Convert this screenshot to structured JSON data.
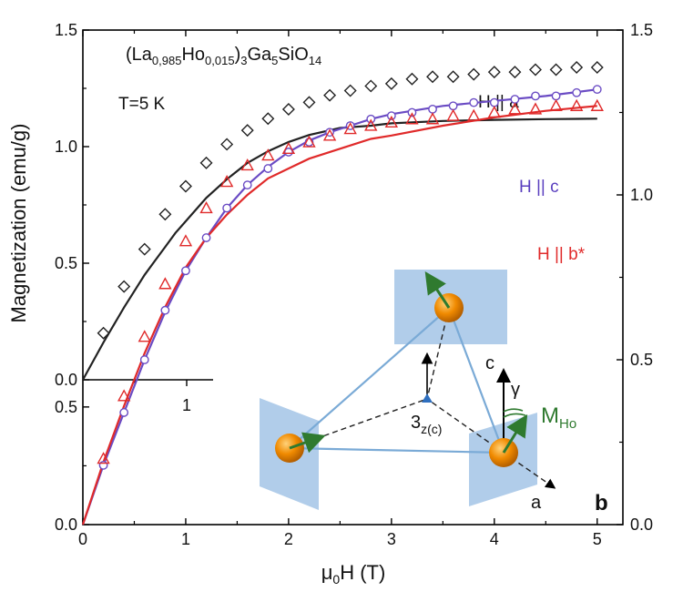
{
  "chart_data": {
    "type": "scatter",
    "compound": {
      "base": "(La",
      "sub1": "0,985",
      "ho": "Ho",
      "sub2": "0,015",
      "mid": ")",
      "sub3": "3",
      "ga": "Ga",
      "sub4": "5",
      "si": "SiO",
      "sub5": "14"
    },
    "temperature_label": "T=5 K",
    "ylabel": "Magnetization (emu/g)",
    "xlabel": {
      "mu": "μ",
      "sub": "0",
      "rest": "H (T)"
    },
    "panel_label": "b",
    "xlim": [
      0,
      5.25
    ],
    "ylim_main": [
      0,
      1.5
    ],
    "ylim_right": [
      0,
      1.5
    ],
    "x_ticks": [
      "0",
      "1",
      "2",
      "3",
      "4",
      "5"
    ],
    "y_ticks_main": [
      "0.0",
      "0.5",
      "1.0",
      "1.5"
    ],
    "y_ticks_right": [
      "0.0",
      "0.5",
      "1.0",
      "1.5"
    ],
    "y_ticks_inset": [
      "0.0",
      "0.5"
    ],
    "inset_x_ticks": [
      "1"
    ],
    "series": [
      {
        "name": "H || a",
        "axis": "main",
        "color": "#222222",
        "marker": "diamond",
        "points": [
          [
            0.2,
            0.2
          ],
          [
            0.4,
            0.4
          ],
          [
            0.6,
            0.56
          ],
          [
            0.8,
            0.71
          ],
          [
            1.0,
            0.83
          ],
          [
            1.2,
            0.93
          ],
          [
            1.4,
            1.01
          ],
          [
            1.6,
            1.07
          ],
          [
            1.8,
            1.12
          ],
          [
            2.0,
            1.16
          ],
          [
            2.2,
            1.19
          ],
          [
            2.4,
            1.22
          ],
          [
            2.6,
            1.24
          ],
          [
            2.8,
            1.26
          ],
          [
            3.0,
            1.27
          ],
          [
            3.2,
            1.29
          ],
          [
            3.4,
            1.3
          ],
          [
            3.6,
            1.3
          ],
          [
            3.8,
            1.31
          ],
          [
            4.0,
            1.32
          ],
          [
            4.2,
            1.32
          ],
          [
            4.4,
            1.33
          ],
          [
            4.6,
            1.33
          ],
          [
            4.8,
            1.34
          ],
          [
            5.0,
            1.34
          ]
        ],
        "fit": [
          [
            0,
            0
          ],
          [
            0.1,
            0.08
          ],
          [
            0.2,
            0.16
          ],
          [
            0.3,
            0.235
          ],
          [
            0.4,
            0.31
          ],
          [
            0.5,
            0.38
          ],
          [
            0.6,
            0.45
          ],
          [
            0.7,
            0.51
          ],
          [
            0.8,
            0.57
          ],
          [
            0.9,
            0.63
          ],
          [
            1.0,
            0.68
          ],
          [
            1.2,
            0.78
          ],
          [
            1.4,
            0.86
          ],
          [
            1.6,
            0.93
          ],
          [
            1.8,
            0.98
          ],
          [
            2.0,
            1.02
          ],
          [
            2.2,
            1.05
          ],
          [
            2.5,
            1.08
          ],
          [
            2.8,
            1.09
          ],
          [
            3.0,
            1.1
          ],
          [
            3.5,
            1.11
          ],
          [
            4.0,
            1.115
          ],
          [
            4.5,
            1.118
          ],
          [
            5.0,
            1.12
          ]
        ]
      },
      {
        "name": "H || c",
        "axis": "right",
        "color": "#6a4bc4",
        "marker": "circle",
        "points": [
          [
            0.2,
            0.18
          ],
          [
            0.4,
            0.34
          ],
          [
            0.6,
            0.5
          ],
          [
            0.8,
            0.65
          ],
          [
            1.0,
            0.77
          ],
          [
            1.2,
            0.87
          ],
          [
            1.4,
            0.96
          ],
          [
            1.6,
            1.03
          ],
          [
            1.8,
            1.08
          ],
          [
            2.0,
            1.13
          ],
          [
            2.2,
            1.16
          ],
          [
            2.4,
            1.19
          ],
          [
            2.6,
            1.21
          ],
          [
            2.8,
            1.23
          ],
          [
            3.0,
            1.24
          ],
          [
            3.2,
            1.25
          ],
          [
            3.4,
            1.26
          ],
          [
            3.6,
            1.27
          ],
          [
            3.8,
            1.28
          ],
          [
            4.0,
            1.28
          ],
          [
            4.2,
            1.29
          ],
          [
            4.4,
            1.3
          ],
          [
            4.6,
            1.3
          ],
          [
            4.8,
            1.31
          ],
          [
            5.0,
            1.32
          ]
        ],
        "fit": [
          [
            0,
            0
          ],
          [
            0.2,
            0.18
          ],
          [
            0.4,
            0.34
          ],
          [
            0.6,
            0.5
          ],
          [
            0.8,
            0.645
          ],
          [
            1.0,
            0.77
          ],
          [
            1.2,
            0.87
          ],
          [
            1.4,
            0.96
          ],
          [
            1.6,
            1.03
          ],
          [
            1.8,
            1.085
          ],
          [
            2.0,
            1.13
          ],
          [
            2.2,
            1.165
          ],
          [
            2.4,
            1.19
          ],
          [
            2.6,
            1.21
          ],
          [
            2.8,
            1.23
          ],
          [
            3.0,
            1.245
          ],
          [
            3.5,
            1.27
          ],
          [
            4.0,
            1.285
          ],
          [
            4.5,
            1.3
          ],
          [
            5.0,
            1.32
          ]
        ]
      },
      {
        "name": "H || b*",
        "axis": "right",
        "color": "#e02a2a",
        "marker": "triangle",
        "points": [
          [
            0.2,
            0.2
          ],
          [
            0.4,
            0.39
          ],
          [
            0.6,
            0.57
          ],
          [
            0.8,
            0.73
          ],
          [
            1.0,
            0.86
          ],
          [
            1.2,
            0.96
          ],
          [
            1.4,
            1.04
          ],
          [
            1.6,
            1.09
          ],
          [
            1.8,
            1.12
          ],
          [
            2.0,
            1.14
          ],
          [
            2.2,
            1.16
          ],
          [
            2.4,
            1.18
          ],
          [
            2.6,
            1.2
          ],
          [
            2.8,
            1.21
          ],
          [
            3.0,
            1.22
          ],
          [
            3.2,
            1.23
          ],
          [
            3.4,
            1.23
          ],
          [
            3.6,
            1.24
          ],
          [
            3.8,
            1.24
          ],
          [
            4.0,
            1.25
          ],
          [
            4.2,
            1.26
          ],
          [
            4.4,
            1.26
          ],
          [
            4.6,
            1.27
          ],
          [
            4.8,
            1.27
          ],
          [
            5.0,
            1.27
          ]
        ],
        "fit": [
          [
            0,
            0
          ],
          [
            0.2,
            0.19
          ],
          [
            0.4,
            0.36
          ],
          [
            0.6,
            0.52
          ],
          [
            0.8,
            0.66
          ],
          [
            1.0,
            0.78
          ],
          [
            1.2,
            0.87
          ],
          [
            1.4,
            0.94
          ],
          [
            1.6,
            1.0
          ],
          [
            1.8,
            1.05
          ],
          [
            2.0,
            1.08
          ],
          [
            2.2,
            1.11
          ],
          [
            2.4,
            1.13
          ],
          [
            2.6,
            1.15
          ],
          [
            2.8,
            1.17
          ],
          [
            3.0,
            1.18
          ],
          [
            3.5,
            1.21
          ],
          [
            4.0,
            1.235
          ],
          [
            4.5,
            1.255
          ],
          [
            5.0,
            1.27
          ]
        ]
      }
    ],
    "diagram": {
      "c_label": "c",
      "gamma_label": "γ",
      "m_label": "M",
      "m_sub": "Ho",
      "axis3_label": "3",
      "axis3_sub": "z(c)",
      "a_label": "a",
      "plane_color": "#a9c8e8",
      "atom_color": "#f08a00",
      "spin_color": "#2f7a2f",
      "edge_color": "#7aaad6"
    }
  }
}
